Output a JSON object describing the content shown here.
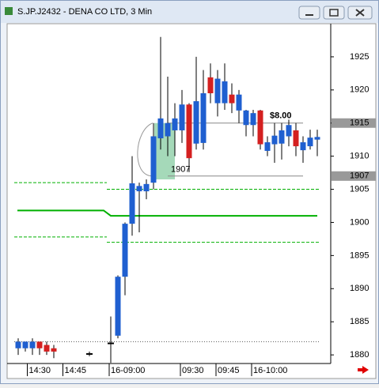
{
  "window_title": "S.JP.J2432 - DENA CO LTD, 3 Min",
  "chart_data": {
    "type": "candlestick",
    "categories": [
      null,
      null,
      null,
      null,
      null,
      null,
      null,
      null,
      null,
      null,
      null,
      null,
      null,
      null,
      null,
      null,
      null,
      null,
      null,
      null,
      null,
      null,
      null,
      null,
      null,
      null,
      null,
      null,
      null,
      null,
      null,
      null,
      null,
      null,
      null,
      null,
      null,
      null,
      null,
      null,
      null,
      null,
      null
    ],
    "open": [
      1881,
      1881,
      1881,
      1882,
      1881.5,
      1881,
      null,
      null,
      null,
      null,
      1880.2,
      null,
      null,
      1881.8,
      1882.9,
      1891.8,
      1899.8,
      1904.7,
      1904.7,
      1906,
      1912.7,
      1913,
      1913.9,
      1913.9,
      1917.8,
      1911.9,
      1912,
      1921.9,
      1918,
      1918,
      1919.3,
      1916.9,
      1914.7,
      1914.7,
      1916.9,
      1910.8,
      1911.8,
      1911.9,
      1913,
      1913.9,
      1910.9,
      1911.5,
      1912.5
    ],
    "high": [
      1882.5,
      1882,
      1882.5,
      1882,
      1882,
      1881.5,
      null,
      null,
      null,
      null,
      1880.5,
      null,
      null,
      1885.8,
      1892,
      1900,
      1910,
      1906,
      1906.5,
      1915,
      1928,
      1922,
      1918,
      1920,
      1918,
      1925,
      1923,
      1924,
      1923,
      1924,
      1921,
      1920,
      1917,
      1917,
      1917,
      1913,
      1915,
      1915,
      1915.5,
      1915,
      1913,
      1914,
      1914
    ],
    "low": [
      1880,
      1880.5,
      1880,
      1880,
      1880,
      1879.5,
      null,
      null,
      null,
      null,
      1879.8,
      null,
      null,
      1878.8,
      1882.5,
      1889,
      1898,
      1898.5,
      1903.5,
      1905,
      1911,
      1910,
      1910,
      1912,
      1907.6,
      1911,
      1911,
      1918,
      1916,
      1917,
      1916.5,
      1915,
      1913,
      1913,
      1911,
      1910,
      1909,
      1909.5,
      1911.5,
      1910,
      1909,
      1911,
      1910
    ],
    "close": [
      1882,
      1882,
      1882,
      1881,
      1880.5,
      1880.5,
      null,
      null,
      null,
      null,
      1880.2,
      null,
      null,
      1881.8,
      1891.8,
      1899.8,
      1905.9,
      1905.5,
      1905.8,
      1913,
      1915.7,
      1915,
      1915.7,
      1917.8,
      1909.7,
      1918.3,
      1919.5,
      1919.5,
      1921.7,
      1921.3,
      1918,
      1919.3,
      1916.9,
      1916.5,
      1911.8,
      1912.1,
      1913.1,
      1913.9,
      1914.7,
      1911.5,
      1912.1,
      1912.8,
      1912.9
    ],
    "up_color": "#1f5fd0",
    "down_color": "#d42020",
    "flat_color": "#000000",
    "ylim": [
      1878.7,
      1930
    ],
    "yticks": [
      1880,
      1885,
      1890,
      1895,
      1900,
      1905,
      1910,
      1915,
      1920,
      1925
    ],
    "xticks": [
      {
        "value": 1.5,
        "label": "14:30"
      },
      {
        "value": 6.5,
        "label": "14:45"
      },
      {
        "value": 13,
        "label": "16-09:00"
      },
      {
        "value": 23,
        "label": "09:30"
      },
      {
        "value": 28,
        "label": "09:45"
      },
      {
        "value": 33,
        "label": "16-10:00"
      }
    ],
    "levels": [
      {
        "color": "#00b000",
        "style": "dashed",
        "values": [
          1906,
          1905
        ]
      },
      {
        "color": "#00b000",
        "style": "solid",
        "values": [
          1901.8,
          1901
        ]
      },
      {
        "color": "#00b000",
        "style": "dashed",
        "values": [
          1897.8,
          1897
        ]
      },
      {
        "color": "#555555",
        "style": "dotted",
        "values": [
          1882,
          1882
        ]
      }
    ],
    "markers": [
      {
        "value": 1915
      },
      {
        "value": 1907
      }
    ],
    "change": "$8.00"
  }
}
